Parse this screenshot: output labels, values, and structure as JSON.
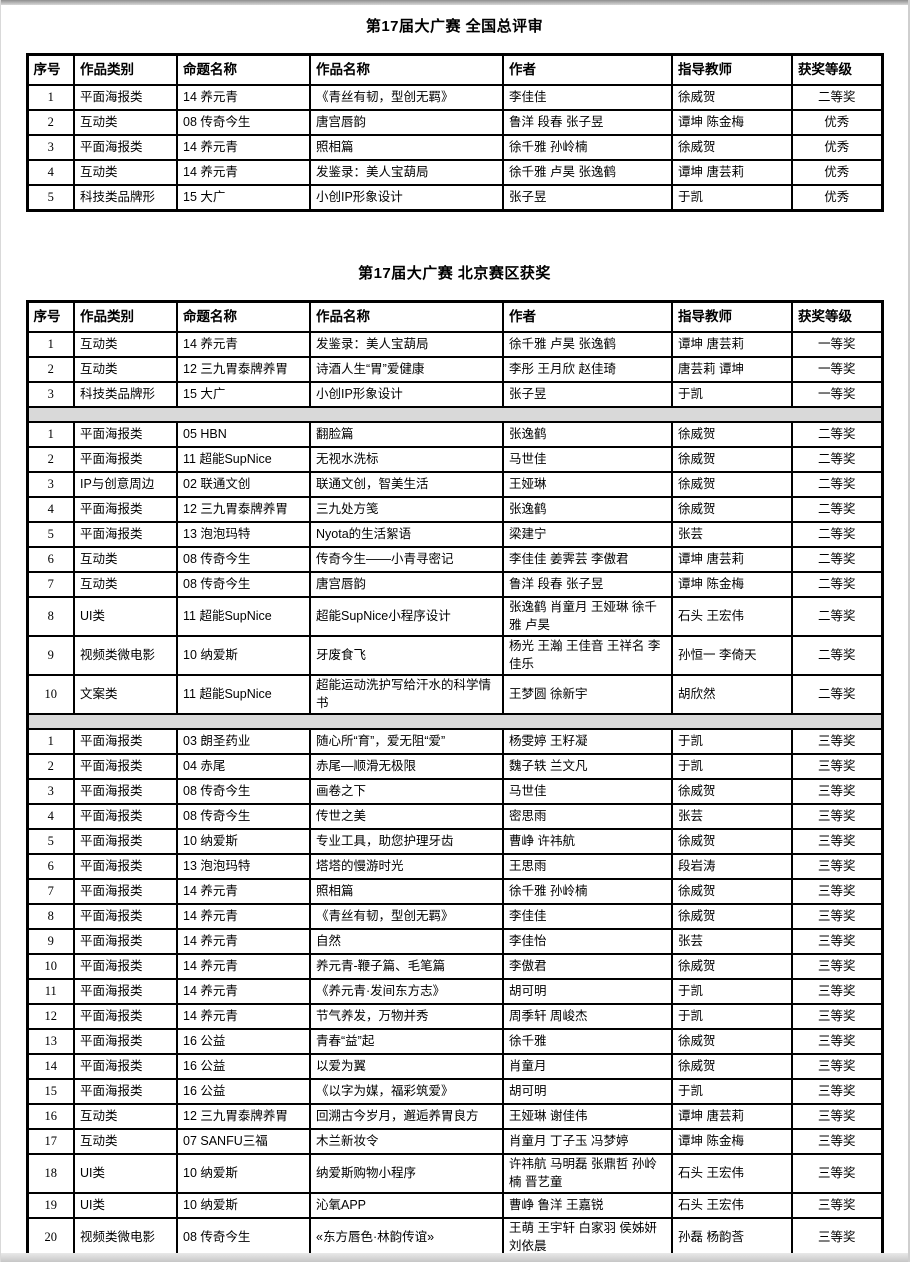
{
  "national": {
    "title": "第17届大广赛  全国总评审",
    "columns": [
      "序号",
      "作品类别",
      "命题名称",
      "作品名称",
      "作者",
      "指导教师",
      "获奖等级"
    ],
    "rows": [
      [
        "1",
        "平面海报类",
        "14 养元青",
        "《青丝有韧，型创无羁》",
        "李佳佳",
        "徐威贺",
        "二等奖"
      ],
      [
        "2",
        "互动类",
        "08 传奇今生",
        "唐宫唇韵",
        "鲁洋 段春 张子昱",
        "谭坤 陈金梅",
        "优秀"
      ],
      [
        "3",
        "平面海报类",
        "14 养元青",
        "照相篇",
        "徐千雅 孙岭楠",
        "徐威贺",
        "优秀"
      ],
      [
        "4",
        "互动类",
        "14 养元青",
        "发鉴录：美人宝葫局",
        "徐千雅 卢昊 张逸鹤",
        "谭坤 唐芸莉",
        "优秀"
      ],
      [
        "5",
        "科技类品牌形",
        "15 大广",
        "小创IP形象设计",
        "张子昱",
        "于凯",
        "优秀"
      ]
    ]
  },
  "beijing": {
    "title": "第17届大广赛  北京赛区获奖",
    "columns": [
      "序号",
      "作品类别",
      "命题名称",
      "作品名称",
      "作者",
      "指导教师",
      "获奖等级"
    ],
    "rows": [
      [
        "1",
        "互动类",
        "14 养元青",
        "发鉴录：美人宝葫局",
        "徐千雅 卢昊 张逸鹤",
        "谭坤 唐芸莉",
        "一等奖"
      ],
      [
        "2",
        "互动类",
        {
          "text": "12 三九胃泰牌养胃",
          "small": true
        },
        "诗酒人生“胃”爱健康",
        "李彤 王月欣 赵佳琦",
        "唐芸莉 谭坤",
        "一等奖"
      ],
      [
        "3",
        "科技类品牌形",
        "15 大广",
        "小创IP形象设计",
        "张子昱",
        "于凯",
        "一等奖"
      ],
      {
        "separator": true
      },
      [
        "1",
        "平面海报类",
        "05 HBN",
        "翻脸篇",
        "张逸鹤",
        "徐威贺",
        "二等奖"
      ],
      [
        "2",
        "平面海报类",
        "11 超能SupNice",
        "无视水洗标",
        "马世佳",
        "徐威贺",
        "二等奖"
      ],
      [
        "3",
        "IP与创意周边",
        "02 联通文创",
        "联通文创，智美生活",
        "王娅琳",
        "徐威贺",
        "二等奖"
      ],
      [
        "4",
        "平面海报类",
        {
          "text": "12 三九胃泰牌养胃",
          "small": true
        },
        "三九处方笺",
        "张逸鹤",
        "徐威贺",
        "二等奖"
      ],
      [
        "5",
        "平面海报类",
        "13 泡泡玛特",
        "Nyota的生活絮语",
        "梁建宁",
        "张芸",
        "二等奖"
      ],
      [
        "6",
        "互动类",
        "08 传奇今生",
        "传奇今生——小青寻密记",
        "李佳佳 姜霁芸 李傲君",
        "谭坤 唐芸莉",
        "二等奖"
      ],
      [
        "7",
        "互动类",
        "08 传奇今生",
        "唐宫唇韵",
        "鲁洋 段春 张子昱",
        "谭坤 陈金梅",
        "二等奖"
      ],
      [
        "8",
        "UI类",
        "11 超能SupNice",
        "超能SupNice小程序设计",
        "张逸鹤 肖童月 王娅琳 徐千雅 卢昊",
        "石头 王宏伟",
        "二等奖"
      ],
      [
        "9",
        "视频类微电影",
        "10 纳爱斯",
        "牙废食飞",
        "杨光 王瀚 王佳音 王祥名 李佳乐",
        "孙恒一 李倚天",
        "二等奖"
      ],
      [
        "10",
        "文案类",
        "11 超能SupNice",
        "超能运动洗护写给汗水的科学情书",
        "王梦圆 徐新宇",
        "胡欣然",
        "二等奖"
      ],
      {
        "separator": true
      },
      [
        "1",
        "平面海报类",
        "03 朗圣药业",
        {
          "text": "随心所“育”，爱无阻“爱”",
          "small": true
        },
        "杨雯婷 王籽凝",
        "于凯",
        "三等奖"
      ],
      [
        "2",
        "平面海报类",
        "04 赤尾",
        "赤尾—顺滑无极限",
        "魏子轶 兰文凡",
        "于凯",
        "三等奖"
      ],
      [
        "3",
        "平面海报类",
        "08 传奇今生",
        "画卷之下",
        "马世佳",
        "徐威贺",
        "三等奖"
      ],
      [
        "4",
        "平面海报类",
        "08 传奇今生",
        "传世之美",
        "密思雨",
        "张芸",
        "三等奖"
      ],
      [
        "5",
        "平面海报类",
        "10 纳爱斯",
        "专业工具，助您护理牙齿",
        "曹峥 许祎航",
        "徐威贺",
        "三等奖"
      ],
      [
        "6",
        "平面海报类",
        "13 泡泡玛特",
        "塔塔的慢游时光",
        "王思雨",
        "段岩涛",
        "三等奖"
      ],
      [
        "7",
        "平面海报类",
        "14 养元青",
        "照相篇",
        "徐千雅 孙岭楠",
        "徐威贺",
        "三等奖"
      ],
      [
        "8",
        "平面海报类",
        "14 养元青",
        "《青丝有韧，型创无羁》",
        "李佳佳",
        "徐威贺",
        "三等奖"
      ],
      [
        "9",
        "平面海报类",
        "14 养元青",
        "自然",
        "李佳怡",
        "张芸",
        "三等奖"
      ],
      [
        "10",
        "平面海报类",
        "14 养元青",
        "养元青-鞭子篇、毛笔篇",
        "李傲君",
        "徐威贺",
        "三等奖"
      ],
      [
        "11",
        "平面海报类",
        "14 养元青",
        "《养元青·发间东方志》",
        "胡可明",
        "于凯",
        "三等奖"
      ],
      [
        "12",
        "平面海报类",
        "14 养元青",
        "节气养发，万物并秀",
        "周季轩 周峻杰",
        "于凯",
        "三等奖"
      ],
      [
        "13",
        "平面海报类",
        "16 公益",
        "青春“益”起",
        "徐千雅",
        "徐威贺",
        "三等奖"
      ],
      [
        "14",
        "平面海报类",
        "16 公益",
        "以爱为翼",
        "肖童月",
        "徐威贺",
        "三等奖"
      ],
      [
        "15",
        "平面海报类",
        "16 公益",
        "《以字为媒，福彩筑爱》",
        "胡可明",
        "于凯",
        "三等奖"
      ],
      [
        "16",
        "互动类",
        {
          "text": "12 三九胃泰牌养胃",
          "small": true
        },
        {
          "text": "回溯古今岁月，邂逅养胃良方",
          "small": true
        },
        "王娅琳 谢佳伟",
        "谭坤 唐芸莉",
        "三等奖"
      ],
      [
        "17",
        "互动类",
        "07 SANFU三福",
        "木兰新妆令",
        "肖童月 丁子玉 冯梦婷",
        "谭坤 陈金梅",
        "三等奖"
      ],
      [
        "18",
        "UI类",
        "10 纳爱斯",
        "纳爱斯购物小程序",
        "许祎航 马明磊 张鼎哲 孙岭楠 晋艺童",
        "石头 王宏伟",
        "三等奖"
      ],
      [
        "19",
        "UI类",
        "10 纳爱斯",
        "沁氧APP",
        "曹峥 鲁洋 王嘉锐",
        "石头 王宏伟",
        "三等奖"
      ],
      [
        "20",
        "视频类微电影",
        "08 传奇今生",
        "«东方唇色·林韵传谊»",
        "王萌 王宇轩 白家羽 侯姊妍 刘依晨",
        "孙磊 杨韵莟",
        "三等奖"
      ]
    ]
  }
}
